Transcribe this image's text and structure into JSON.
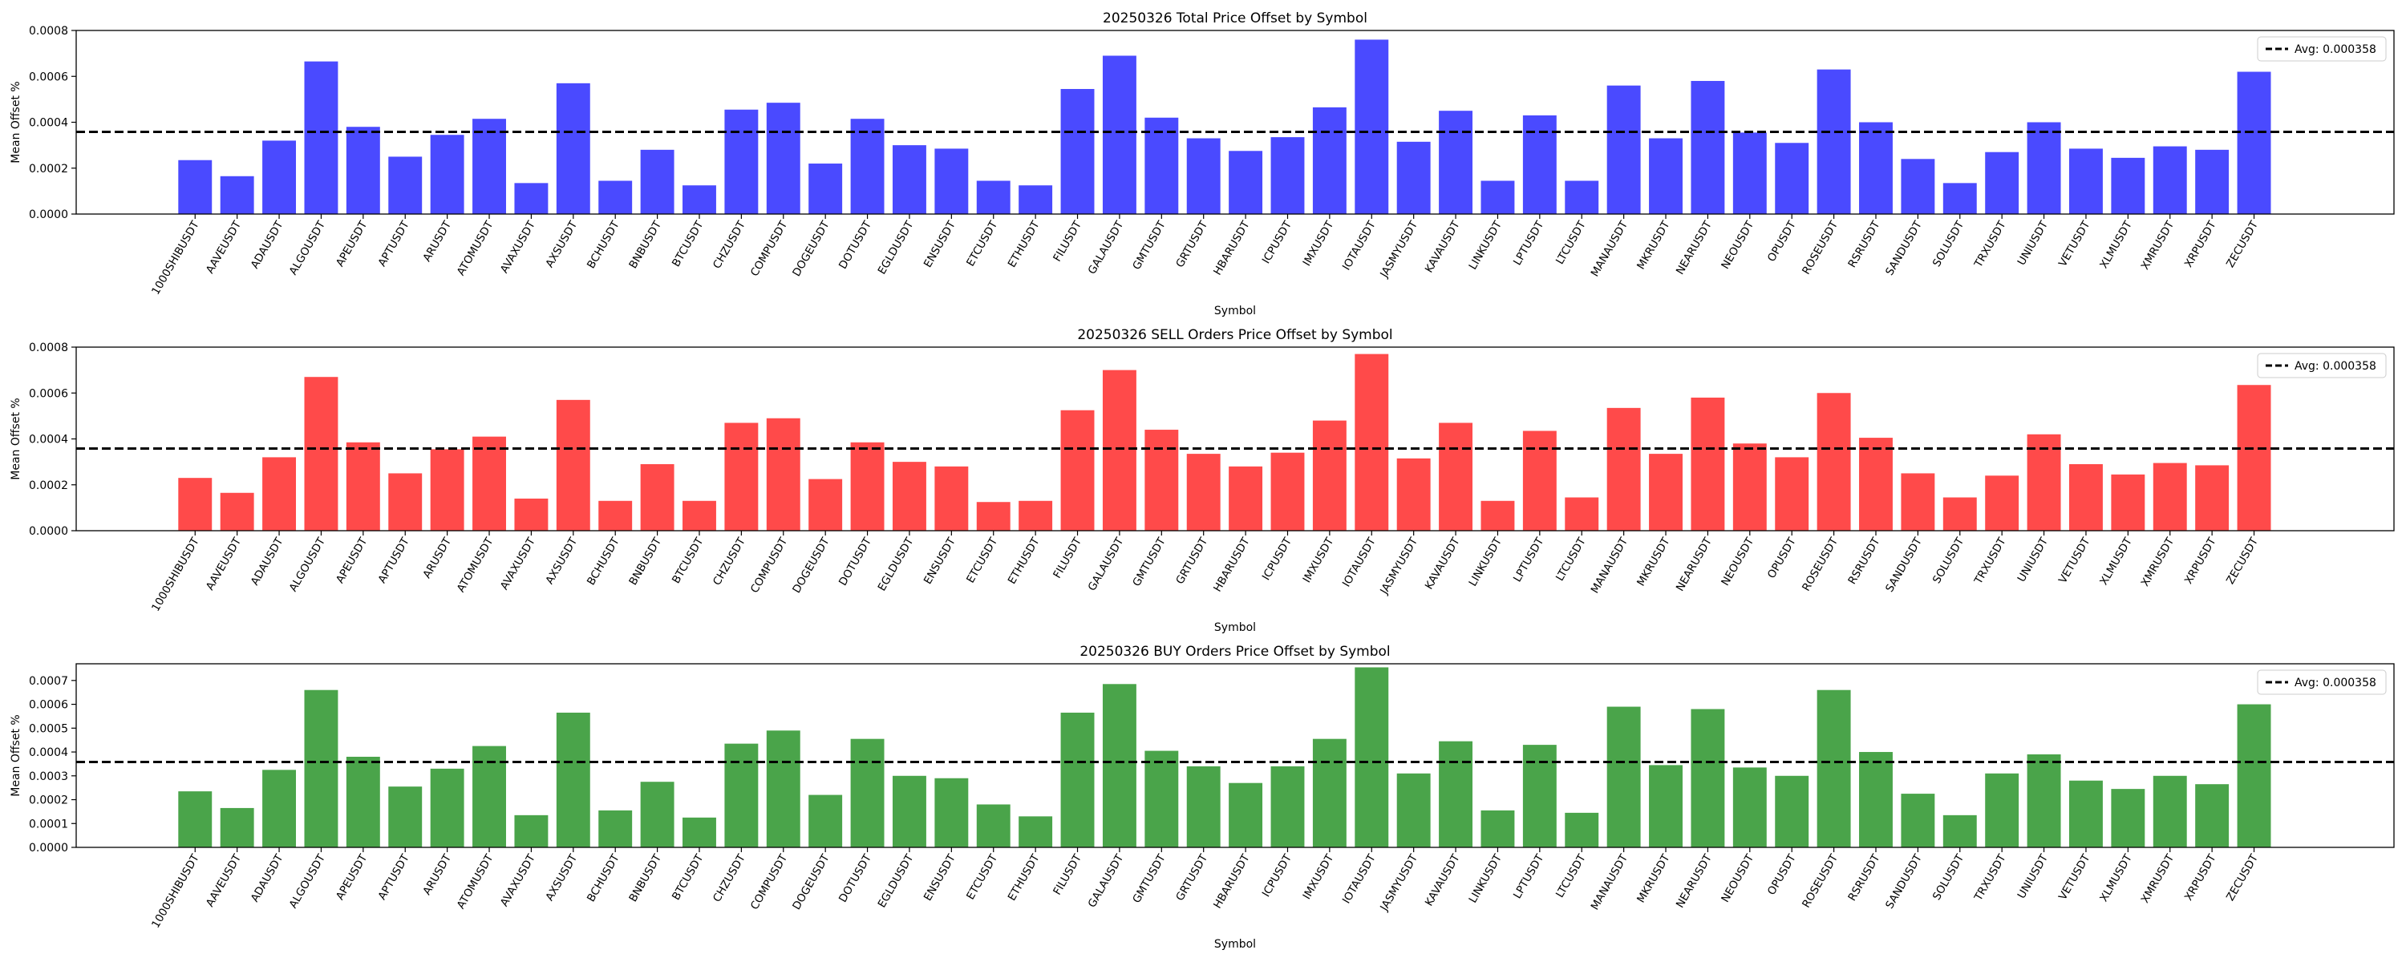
{
  "chart_data": [
    {
      "type": "bar",
      "title": "20250326 Total Price Offset by Symbol",
      "xlabel": "Symbol",
      "ylabel": "Mean Offset %",
      "ylim": [
        0,
        0.0008
      ],
      "yticks": [
        "0.0000",
        "0.0002",
        "0.0004",
        "0.0006",
        "0.0008"
      ],
      "yticks_values": [
        0,
        0.0002,
        0.0004,
        0.0006,
        0.0008
      ],
      "bar_color": "#4a4aff",
      "avg": 0.000358,
      "legend": {
        "label": "Avg: 0.000358",
        "placement": "top-right"
      },
      "categories": [
        "1000SHIBUSDT",
        "AAVEUSDT",
        "ADAUSDT",
        "ALGOUSDT",
        "APEUSDT",
        "APTUSDT",
        "ARUSDT",
        "ATOMUSDT",
        "AVAXUSDT",
        "AXSUSDT",
        "BCHUSDT",
        "BNBUSDT",
        "BTCUSDT",
        "CHZUSDT",
        "COMPUSDT",
        "DOGEUSDT",
        "DOTUSDT",
        "EGLDUSDT",
        "ENSUSDT",
        "ETCUSDT",
        "ETHUSDT",
        "FILUSDT",
        "GALAUSDT",
        "GMTUSDT",
        "GRTUSDT",
        "HBARUSDT",
        "ICPUSDT",
        "IMXUSDT",
        "IOTAUSDT",
        "JASMYUSDT",
        "KAVAUSDT",
        "LINKUSDT",
        "LPTUSDT",
        "LTCUSDT",
        "MANAUSDT",
        "MKRUSDT",
        "NEARUSDT",
        "NEOUSDT",
        "OPUSDT",
        "ROSEUSDT",
        "RSRUSDT",
        "SANDUSDT",
        "SOLUSDT",
        "TRXUSDT",
        "UNIUSDT",
        "VETUSDT",
        "XLMUSDT",
        "XMRUSDT",
        "XRPUSDT",
        "ZECUSDT"
      ],
      "values": [
        0.000235,
        0.000165,
        0.00032,
        0.000665,
        0.00038,
        0.00025,
        0.000345,
        0.000415,
        0.000135,
        0.00057,
        0.000145,
        0.00028,
        0.000125,
        0.000455,
        0.000485,
        0.00022,
        0.000415,
        0.0003,
        0.000285,
        0.000145,
        0.000125,
        0.000545,
        0.00069,
        0.00042,
        0.00033,
        0.000275,
        0.000335,
        0.000465,
        0.00076,
        0.000315,
        0.00045,
        0.000145,
        0.00043,
        0.000145,
        0.00056,
        0.00033,
        0.00058,
        0.000355,
        0.00031,
        0.00063,
        0.0004,
        0.00024,
        0.000135,
        0.00027,
        0.0004,
        0.000285,
        0.000245,
        0.000295,
        0.00028,
        0.00062
      ]
    },
    {
      "type": "bar",
      "title": "20250326 SELL Orders Price Offset by Symbol",
      "xlabel": "Symbol",
      "ylabel": "Mean Offset %",
      "ylim": [
        0,
        0.0008
      ],
      "yticks": [
        "0.0000",
        "0.0002",
        "0.0004",
        "0.0006",
        "0.0008"
      ],
      "yticks_values": [
        0,
        0.0002,
        0.0004,
        0.0006,
        0.0008
      ],
      "bar_color": "#ff4a4a",
      "avg": 0.000358,
      "legend": {
        "label": "Avg: 0.000358",
        "placement": "top-right"
      },
      "categories": [
        "1000SHIBUSDT",
        "AAVEUSDT",
        "ADAUSDT",
        "ALGOUSDT",
        "APEUSDT",
        "APTUSDT",
        "ARUSDT",
        "ATOMUSDT",
        "AVAXUSDT",
        "AXSUSDT",
        "BCHUSDT",
        "BNBUSDT",
        "BTCUSDT",
        "CHZUSDT",
        "COMPUSDT",
        "DOGEUSDT",
        "DOTUSDT",
        "EGLDUSDT",
        "ENSUSDT",
        "ETCUSDT",
        "ETHUSDT",
        "FILUSDT",
        "GALAUSDT",
        "GMTUSDT",
        "GRTUSDT",
        "HBARUSDT",
        "ICPUSDT",
        "IMXUSDT",
        "IOTAUSDT",
        "JASMYUSDT",
        "KAVAUSDT",
        "LINKUSDT",
        "LPTUSDT",
        "LTCUSDT",
        "MANAUSDT",
        "MKRUSDT",
        "NEARUSDT",
        "NEOUSDT",
        "OPUSDT",
        "ROSEUSDT",
        "RSRUSDT",
        "SANDUSDT",
        "SOLUSDT",
        "TRXUSDT",
        "UNIUSDT",
        "VETUSDT",
        "XLMUSDT",
        "XMRUSDT",
        "XRPUSDT",
        "ZECUSDT"
      ],
      "values": [
        0.00023,
        0.000165,
        0.00032,
        0.00067,
        0.000385,
        0.00025,
        0.000355,
        0.00041,
        0.00014,
        0.00057,
        0.00013,
        0.00029,
        0.00013,
        0.00047,
        0.00049,
        0.000225,
        0.000385,
        0.0003,
        0.00028,
        0.000125,
        0.00013,
        0.000525,
        0.0007,
        0.00044,
        0.000335,
        0.00028,
        0.00034,
        0.00048,
        0.00077,
        0.000315,
        0.00047,
        0.00013,
        0.000435,
        0.000145,
        0.000535,
        0.000335,
        0.00058,
        0.00038,
        0.00032,
        0.0006,
        0.000405,
        0.00025,
        0.000145,
        0.00024,
        0.00042,
        0.00029,
        0.000245,
        0.000295,
        0.000285,
        0.000635
      ]
    },
    {
      "type": "bar",
      "title": "20250326 BUY Orders Price Offset by Symbol",
      "xlabel": "Symbol",
      "ylabel": "Mean Offset %",
      "ylim": [
        0,
        0.00077
      ],
      "yticks": [
        "0.0000",
        "0.0001",
        "0.0002",
        "0.0003",
        "0.0004",
        "0.0005",
        "0.0006",
        "0.0007"
      ],
      "yticks_values": [
        0,
        0.0001,
        0.0002,
        0.0003,
        0.0004,
        0.0005,
        0.0006,
        0.0007
      ],
      "bar_color": "#4aa44a",
      "avg": 0.000358,
      "legend": {
        "label": "Avg: 0.000358",
        "placement": "top-right"
      },
      "categories": [
        "1000SHIBUSDT",
        "AAVEUSDT",
        "ADAUSDT",
        "ALGOUSDT",
        "APEUSDT",
        "APTUSDT",
        "ARUSDT",
        "ATOMUSDT",
        "AVAXUSDT",
        "AXSUSDT",
        "BCHUSDT",
        "BNBUSDT",
        "BTCUSDT",
        "CHZUSDT",
        "COMPUSDT",
        "DOGEUSDT",
        "DOTUSDT",
        "EGLDUSDT",
        "ENSUSDT",
        "ETCUSDT",
        "ETHUSDT",
        "FILUSDT",
        "GALAUSDT",
        "GMTUSDT",
        "GRTUSDT",
        "HBARUSDT",
        "ICPUSDT",
        "IMXUSDT",
        "IOTAUSDT",
        "JASMYUSDT",
        "KAVAUSDT",
        "LINKUSDT",
        "LPTUSDT",
        "LTCUSDT",
        "MANAUSDT",
        "MKRUSDT",
        "NEARUSDT",
        "NEOUSDT",
        "OPUSDT",
        "ROSEUSDT",
        "RSRUSDT",
        "SANDUSDT",
        "SOLUSDT",
        "TRXUSDT",
        "UNIUSDT",
        "VETUSDT",
        "XLMUSDT",
        "XMRUSDT",
        "XRPUSDT",
        "ZECUSDT"
      ],
      "values": [
        0.000235,
        0.000165,
        0.000325,
        0.00066,
        0.00038,
        0.000255,
        0.00033,
        0.000425,
        0.000135,
        0.000565,
        0.000155,
        0.000275,
        0.000125,
        0.000435,
        0.00049,
        0.00022,
        0.000455,
        0.0003,
        0.00029,
        0.00018,
        0.00013,
        0.000565,
        0.000685,
        0.000405,
        0.00034,
        0.00027,
        0.00034,
        0.000455,
        0.000755,
        0.00031,
        0.000445,
        0.000155,
        0.00043,
        0.000145,
        0.00059,
        0.000345,
        0.00058,
        0.000335,
        0.0003,
        0.00066,
        0.0004,
        0.000225,
        0.000135,
        0.00031,
        0.00039,
        0.00028,
        0.000245,
        0.0003,
        0.000265,
        0.0006
      ]
    }
  ]
}
